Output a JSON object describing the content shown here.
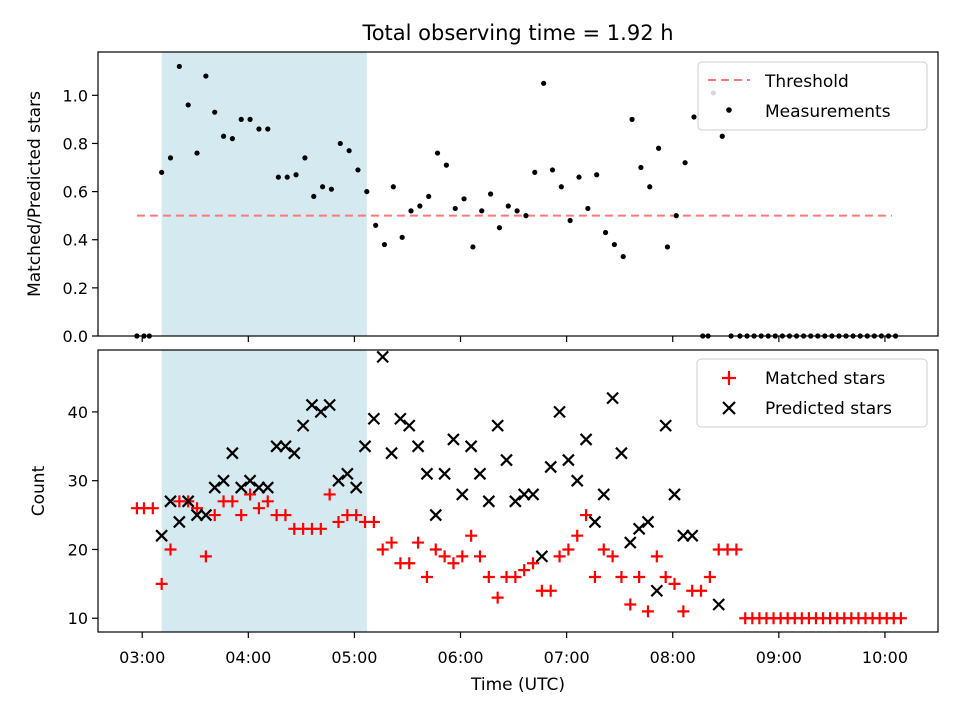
{
  "figure": {
    "title": "Total observing time = 1.92 h"
  },
  "chart_data": [
    {
      "type": "scatter",
      "panel": "top",
      "title": "Total observing time = 1.92 h",
      "xlabel": "",
      "ylabel": "Matched/Predicted stars",
      "xlim": [
        "02:35",
        "10:30"
      ],
      "ylim": [
        0,
        1.18
      ],
      "yticks": [
        0.0,
        0.2,
        0.4,
        0.6,
        0.8,
        1.0
      ],
      "ytick_labels": [
        "0.0",
        "0.2",
        "0.4",
        "0.6",
        "0.8",
        "1.0"
      ],
      "xticks": [
        "03:00",
        "04:00",
        "05:00",
        "06:00",
        "07:00",
        "08:00",
        "09:00",
        "10:00"
      ],
      "grid": false,
      "legend_position": "top-right",
      "highlight_span": {
        "from": "03:11",
        "to": "05:07",
        "color": "#d4eaf0"
      },
      "threshold": {
        "name": "Threshold",
        "value": 0.5,
        "from": "02:57",
        "to": "10:04",
        "color": "#ff7777",
        "style": "dashed"
      },
      "series": [
        {
          "name": "Measurements",
          "marker": "dot",
          "color": "#000000",
          "points": [
            [
              "02:57",
              0
            ],
            [
              "03:01",
              0
            ],
            [
              "03:04",
              0
            ],
            [
              "03:11",
              0.68
            ],
            [
              "03:16",
              0.74
            ],
            [
              "03:21",
              1.12
            ],
            [
              "03:26",
              0.96
            ],
            [
              "03:31",
              0.76
            ],
            [
              "03:36",
              1.08
            ],
            [
              "03:41",
              0.93
            ],
            [
              "03:46",
              0.83
            ],
            [
              "03:51",
              0.82
            ],
            [
              "03:56",
              0.9
            ],
            [
              "04:01",
              0.9
            ],
            [
              "04:06",
              0.86
            ],
            [
              "04:11",
              0.86
            ],
            [
              "04:17",
              0.66
            ],
            [
              "04:22",
              0.66
            ],
            [
              "04:27",
              0.67
            ],
            [
              "04:32",
              0.74
            ],
            [
              "04:37",
              0.58
            ],
            [
              "04:42",
              0.62
            ],
            [
              "04:47",
              0.61
            ],
            [
              "04:52",
              0.8
            ],
            [
              "04:57",
              0.77
            ],
            [
              "05:02",
              0.69
            ],
            [
              "05:07",
              0.6
            ],
            [
              "05:12",
              0.46
            ],
            [
              "05:17",
              0.38
            ],
            [
              "05:22",
              0.62
            ],
            [
              "05:27",
              0.41
            ],
            [
              "05:32",
              0.52
            ],
            [
              "05:37",
              0.54
            ],
            [
              "05:42",
              0.58
            ],
            [
              "05:47",
              0.76
            ],
            [
              "05:52",
              0.71
            ],
            [
              "05:57",
              0.53
            ],
            [
              "06:02",
              0.57
            ],
            [
              "06:07",
              0.37
            ],
            [
              "06:12",
              0.52
            ],
            [
              "06:17",
              0.59
            ],
            [
              "06:22",
              0.45
            ],
            [
              "06:27",
              0.54
            ],
            [
              "06:32",
              0.52
            ],
            [
              "06:37",
              0.5
            ],
            [
              "06:42",
              0.68
            ],
            [
              "06:47",
              1.05
            ],
            [
              "06:52",
              0.69
            ],
            [
              "06:57",
              0.62
            ],
            [
              "07:02",
              0.48
            ],
            [
              "07:07",
              0.66
            ],
            [
              "07:12",
              0.53
            ],
            [
              "07:17",
              0.67
            ],
            [
              "07:22",
              0.43
            ],
            [
              "07:27",
              0.38
            ],
            [
              "07:32",
              0.33
            ],
            [
              "07:37",
              0.9
            ],
            [
              "07:42",
              0.7
            ],
            [
              "07:47",
              0.62
            ],
            [
              "07:52",
              0.78
            ],
            [
              "07:57",
              0.37
            ],
            [
              "08:02",
              0.5
            ],
            [
              "08:07",
              0.72
            ],
            [
              "08:12",
              0.91
            ],
            [
              "08:17",
              0
            ],
            [
              "08:20",
              0
            ],
            [
              "08:23",
              1.01
            ],
            [
              "08:28",
              0.83
            ],
            [
              "08:33",
              0
            ],
            [
              "08:38",
              0
            ],
            [
              "08:42",
              0
            ],
            [
              "08:46",
              0
            ],
            [
              "08:50",
              0
            ],
            [
              "08:54",
              0
            ],
            [
              "08:58",
              0
            ],
            [
              "09:02",
              0
            ],
            [
              "09:06",
              0
            ],
            [
              "09:10",
              0
            ],
            [
              "09:14",
              0
            ],
            [
              "09:18",
              0
            ],
            [
              "09:22",
              0
            ],
            [
              "09:26",
              0
            ],
            [
              "09:30",
              0
            ],
            [
              "09:34",
              0
            ],
            [
              "09:38",
              0
            ],
            [
              "09:42",
              0
            ],
            [
              "09:46",
              0
            ],
            [
              "09:50",
              0
            ],
            [
              "09:54",
              0
            ],
            [
              "09:58",
              0
            ],
            [
              "10:02",
              0
            ],
            [
              "10:06",
              0
            ]
          ]
        }
      ]
    },
    {
      "type": "scatter",
      "panel": "bottom",
      "title": "",
      "xlabel": "Time (UTC)",
      "ylabel": "Count",
      "xlim": [
        "02:35",
        "10:30"
      ],
      "ylim": [
        8,
        49
      ],
      "yticks": [
        10,
        20,
        30,
        40
      ],
      "ytick_labels": [
        "10",
        "20",
        "30",
        "40"
      ],
      "xticks": [
        "03:00",
        "04:00",
        "05:00",
        "06:00",
        "07:00",
        "08:00",
        "09:00",
        "10:00"
      ],
      "grid": false,
      "legend_position": "top-right",
      "highlight_span": {
        "from": "03:11",
        "to": "05:07",
        "color": "#d4eaf0"
      },
      "series": [
        {
          "name": "Matched stars",
          "marker": "plus",
          "color": "#ff0000",
          "points": [
            [
              "02:57",
              26
            ],
            [
              "03:01",
              26
            ],
            [
              "03:06",
              26
            ],
            [
              "03:11",
              15
            ],
            [
              "03:16",
              20
            ],
            [
              "03:21",
              27
            ],
            [
              "03:26",
              27
            ],
            [
              "03:31",
              26
            ],
            [
              "03:36",
              19
            ],
            [
              "03:41",
              25
            ],
            [
              "03:46",
              27
            ],
            [
              "03:51",
              27
            ],
            [
              "03:56",
              25
            ],
            [
              "04:01",
              28
            ],
            [
              "04:06",
              26
            ],
            [
              "04:11",
              27
            ],
            [
              "04:16",
              25
            ],
            [
              "04:21",
              25
            ],
            [
              "04:26",
              23
            ],
            [
              "04:31",
              23
            ],
            [
              "04:36",
              23
            ],
            [
              "04:41",
              23
            ],
            [
              "04:46",
              28
            ],
            [
              "04:51",
              24
            ],
            [
              "04:56",
              25
            ],
            [
              "05:01",
              25
            ],
            [
              "05:06",
              24
            ],
            [
              "05:11",
              24
            ],
            [
              "05:16",
              20
            ],
            [
              "05:21",
              21
            ],
            [
              "05:26",
              18
            ],
            [
              "05:31",
              18
            ],
            [
              "05:36",
              21
            ],
            [
              "05:41",
              16
            ],
            [
              "05:46",
              20
            ],
            [
              "05:51",
              19
            ],
            [
              "05:56",
              18
            ],
            [
              "06:01",
              19
            ],
            [
              "06:06",
              22
            ],
            [
              "06:11",
              19
            ],
            [
              "06:16",
              16
            ],
            [
              "06:21",
              13
            ],
            [
              "06:26",
              16
            ],
            [
              "06:31",
              16
            ],
            [
              "06:36",
              17
            ],
            [
              "06:41",
              18
            ],
            [
              "06:46",
              14
            ],
            [
              "06:51",
              14
            ],
            [
              "06:56",
              19
            ],
            [
              "07:01",
              20
            ],
            [
              "07:06",
              22
            ],
            [
              "07:11",
              25
            ],
            [
              "07:16",
              16
            ],
            [
              "07:21",
              20
            ],
            [
              "07:26",
              19
            ],
            [
              "07:31",
              16
            ],
            [
              "07:36",
              12
            ],
            [
              "07:41",
              16
            ],
            [
              "07:46",
              11
            ],
            [
              "07:51",
              19
            ],
            [
              "07:56",
              16
            ],
            [
              "08:01",
              15
            ],
            [
              "08:06",
              11
            ],
            [
              "08:11",
              14
            ],
            [
              "08:16",
              14
            ],
            [
              "08:21",
              16
            ],
            [
              "08:26",
              20
            ],
            [
              "08:31",
              20
            ],
            [
              "08:36",
              20
            ],
            [
              "08:41",
              10
            ],
            [
              "08:45",
              10
            ],
            [
              "08:49",
              10
            ],
            [
              "08:53",
              10
            ],
            [
              "08:57",
              10
            ],
            [
              "09:01",
              10
            ],
            [
              "09:05",
              10
            ],
            [
              "09:09",
              10
            ],
            [
              "09:13",
              10
            ],
            [
              "09:17",
              10
            ],
            [
              "09:21",
              10
            ],
            [
              "09:25",
              10
            ],
            [
              "09:29",
              10
            ],
            [
              "09:33",
              10
            ],
            [
              "09:37",
              10
            ],
            [
              "09:41",
              10
            ],
            [
              "09:45",
              10
            ],
            [
              "09:49",
              10
            ],
            [
              "09:53",
              10
            ],
            [
              "09:57",
              10
            ],
            [
              "10:01",
              10
            ],
            [
              "10:05",
              10
            ],
            [
              "10:09",
              10
            ]
          ]
        },
        {
          "name": "Predicted stars",
          "marker": "cross",
          "color": "#000000",
          "points": [
            [
              "03:11",
              22
            ],
            [
              "03:16",
              27
            ],
            [
              "03:21",
              24
            ],
            [
              "03:26",
              27
            ],
            [
              "03:31",
              25
            ],
            [
              "03:36",
              25
            ],
            [
              "03:41",
              29
            ],
            [
              "03:46",
              30
            ],
            [
              "03:51",
              34
            ],
            [
              "03:56",
              29
            ],
            [
              "04:01",
              30
            ],
            [
              "04:06",
              29
            ],
            [
              "04:11",
              29
            ],
            [
              "04:16",
              35
            ],
            [
              "04:21",
              35
            ],
            [
              "04:26",
              34
            ],
            [
              "04:31",
              38
            ],
            [
              "04:36",
              41
            ],
            [
              "04:41",
              40
            ],
            [
              "04:46",
              41
            ],
            [
              "04:51",
              30
            ],
            [
              "04:56",
              31
            ],
            [
              "05:01",
              29
            ],
            [
              "05:06",
              35
            ],
            [
              "05:11",
              39
            ],
            [
              "05:16",
              48
            ],
            [
              "05:21",
              34
            ],
            [
              "05:26",
              39
            ],
            [
              "05:31",
              38
            ],
            [
              "05:36",
              35
            ],
            [
              "05:41",
              31
            ],
            [
              "05:46",
              25
            ],
            [
              "05:51",
              31
            ],
            [
              "05:56",
              36
            ],
            [
              "06:01",
              28
            ],
            [
              "06:06",
              35
            ],
            [
              "06:11",
              31
            ],
            [
              "06:16",
              27
            ],
            [
              "06:21",
              38
            ],
            [
              "06:26",
              33
            ],
            [
              "06:31",
              27
            ],
            [
              "06:36",
              28
            ],
            [
              "06:41",
              28
            ],
            [
              "06:46",
              19
            ],
            [
              "06:51",
              32
            ],
            [
              "06:56",
              40
            ],
            [
              "07:01",
              33
            ],
            [
              "07:06",
              30
            ],
            [
              "07:11",
              36
            ],
            [
              "07:16",
              24
            ],
            [
              "07:21",
              28
            ],
            [
              "07:26",
              42
            ],
            [
              "07:31",
              34
            ],
            [
              "07:36",
              21
            ],
            [
              "07:41",
              23
            ],
            [
              "07:46",
              24
            ],
            [
              "07:51",
              14
            ],
            [
              "07:56",
              38
            ],
            [
              "08:01",
              28
            ],
            [
              "08:06",
              22
            ],
            [
              "08:11",
              22
            ],
            [
              "08:26",
              12
            ]
          ]
        }
      ]
    }
  ]
}
